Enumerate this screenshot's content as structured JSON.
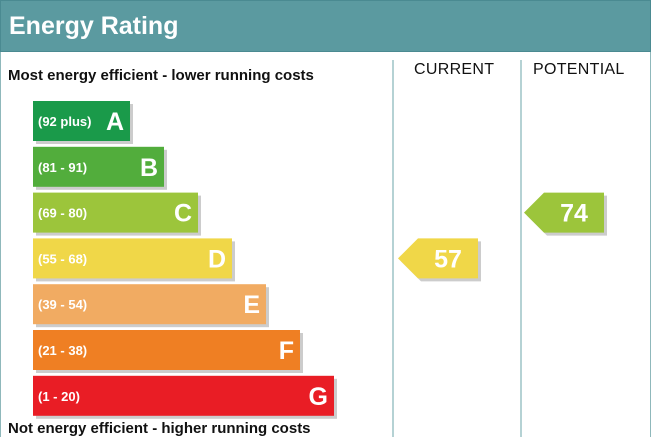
{
  "title": "Energy Rating",
  "top_caption": "Most energy efficient - lower running costs",
  "bottom_caption": "Not energy efficient - higher running costs",
  "columns": {
    "current": "CURRENT",
    "potential": "POTENTIAL"
  },
  "chart_data": {
    "type": "bar",
    "categories": [
      "A",
      "B",
      "C",
      "D",
      "E",
      "F",
      "G"
    ],
    "ranges": [
      "(92 plus)",
      "(81 - 91)",
      "(69 - 80)",
      "(55 - 68)",
      "(39 - 54)",
      "(21 - 38)",
      "(1 - 20)"
    ],
    "colors": [
      "#1a9a4a",
      "#52ad3c",
      "#9cc53b",
      "#f0d748",
      "#f1ab62",
      "#ef7f23",
      "#e91d25"
    ],
    "current": {
      "value": 57,
      "band": "D",
      "color": "#f0d748"
    },
    "potential": {
      "value": 74,
      "band": "C",
      "color": "#9cc53b"
    }
  }
}
